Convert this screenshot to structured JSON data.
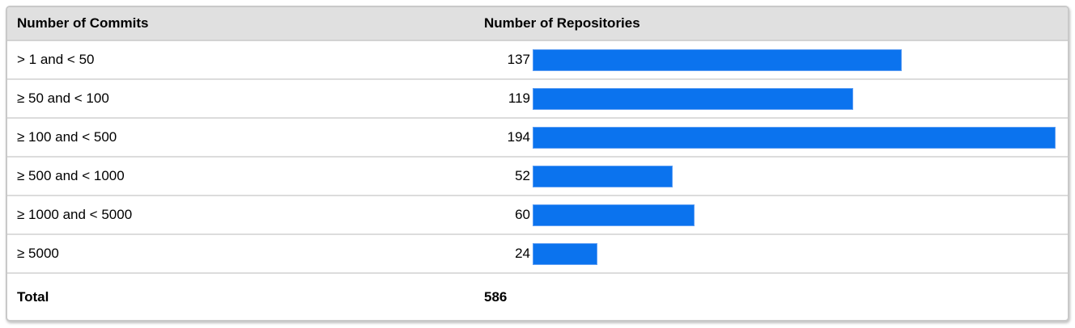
{
  "table": {
    "columns": [
      "Number of Commits",
      "Number of Repositories"
    ],
    "rows": [
      {
        "label": "> 1 and < 50",
        "value": "137"
      },
      {
        "label": "≥ 50 and < 100",
        "value": "119"
      },
      {
        "label": "≥ 100 and < 500",
        "value": "194"
      },
      {
        "label": "≥ 500 and < 1000",
        "value": "52"
      },
      {
        "label": "≥ 1000 and < 5000",
        "value": "60"
      },
      {
        "label": "≥ 5000",
        "value": "24"
      }
    ],
    "total": {
      "label": "Total",
      "value": "586"
    }
  },
  "chart_data": {
    "type": "bar",
    "orientation": "horizontal",
    "title": "",
    "xlabel": "Number of Repositories",
    "ylabel": "Number of Commits",
    "categories": [
      "> 1 and < 50",
      "≥ 50 and < 100",
      "≥ 100 and < 500",
      "≥ 500 and < 1000",
      "≥ 1000 and < 5000",
      "≥ 5000"
    ],
    "values": [
      137,
      119,
      194,
      52,
      60,
      24
    ],
    "total": 586,
    "xlim": [
      0,
      194
    ],
    "grid": false,
    "legend": false,
    "data_labels": true,
    "bar_color": "#0b73ee"
  },
  "colors": {
    "bar": "#0b73ee",
    "bar_edge": "#5e9ef3",
    "header_bg": "#e0e0e0",
    "row_border": "#dcdcdc",
    "card_border": "#c9c9c9",
    "text": "#000000"
  }
}
